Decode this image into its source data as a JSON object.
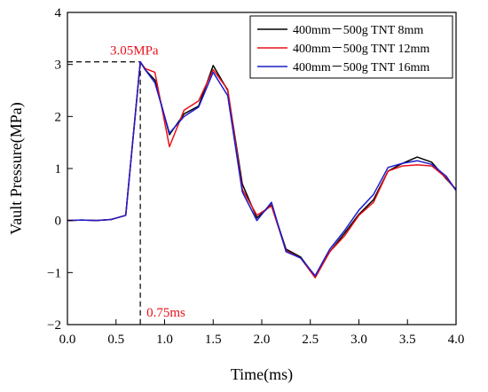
{
  "chart_data": {
    "type": "line",
    "title": "",
    "xlabel": "Time(ms)",
    "ylabel": "Vault Pressure(MPa)",
    "xlim": [
      0,
      4.0
    ],
    "ylim": [
      -2,
      4
    ],
    "xticks": [
      0.0,
      0.5,
      1.0,
      1.5,
      2.0,
      2.5,
      3.0,
      3.5,
      4.0
    ],
    "xtick_labels": [
      "0.0",
      "0.5",
      "1.0",
      "1.5",
      "2.0",
      "2.5",
      "3.0",
      "3.5",
      "4.0"
    ],
    "yticks": [
      -2,
      -1,
      0,
      1,
      2,
      3,
      4
    ],
    "ytick_labels": [
      "−2",
      "−1",
      "0",
      "1",
      "2",
      "3",
      "4"
    ],
    "grid": false,
    "legend_position": "top-right",
    "series": [
      {
        "name": "400mm－500g TNT 8mm",
        "color": "#000000",
        "x": [
          0.0,
          0.15,
          0.3,
          0.45,
          0.6,
          0.75,
          0.8,
          0.9,
          1.05,
          1.2,
          1.35,
          1.5,
          1.65,
          1.8,
          1.95,
          2.1,
          2.25,
          2.4,
          2.55,
          2.7,
          2.85,
          3.0,
          3.15,
          3.3,
          3.45,
          3.6,
          3.75,
          3.9,
          4.0
        ],
        "y": [
          0.0,
          0.01,
          0.0,
          0.02,
          0.1,
          3.05,
          2.9,
          2.7,
          1.65,
          2.05,
          2.2,
          2.98,
          2.5,
          0.7,
          0.05,
          0.3,
          -0.55,
          -0.7,
          -1.08,
          -0.6,
          -0.25,
          0.12,
          0.4,
          0.95,
          1.1,
          1.22,
          1.12,
          0.8,
          0.6
        ]
      },
      {
        "name": "400mm－500g TNT 12mm",
        "color": "#e8101a",
        "x": [
          0.0,
          0.15,
          0.3,
          0.45,
          0.6,
          0.75,
          0.8,
          0.9,
          1.05,
          1.2,
          1.35,
          1.5,
          1.65,
          1.8,
          1.95,
          2.1,
          2.25,
          2.4,
          2.55,
          2.7,
          2.85,
          3.0,
          3.15,
          3.3,
          3.45,
          3.6,
          3.75,
          3.9,
          4.0
        ],
        "y": [
          0.0,
          0.01,
          0.0,
          0.02,
          0.1,
          3.05,
          2.92,
          2.85,
          1.42,
          2.12,
          2.3,
          2.9,
          2.52,
          0.6,
          0.1,
          0.28,
          -0.58,
          -0.72,
          -1.1,
          -0.6,
          -0.3,
          0.1,
          0.35,
          0.95,
          1.05,
          1.07,
          1.05,
          0.82,
          0.58
        ]
      },
      {
        "name": "400mm－500g TNT 16mm",
        "color": "#1c1ccc",
        "x": [
          0.0,
          0.15,
          0.3,
          0.45,
          0.6,
          0.75,
          0.8,
          0.9,
          1.05,
          1.2,
          1.35,
          1.5,
          1.65,
          1.8,
          1.95,
          2.1,
          2.25,
          2.4,
          2.55,
          2.7,
          2.85,
          3.0,
          3.15,
          3.3,
          3.45,
          3.6,
          3.75,
          3.9,
          4.0
        ],
        "y": [
          0.0,
          0.01,
          0.0,
          0.02,
          0.1,
          3.05,
          2.9,
          2.65,
          1.68,
          2.0,
          2.18,
          2.85,
          2.4,
          0.55,
          0.0,
          0.35,
          -0.6,
          -0.72,
          -1.06,
          -0.55,
          -0.2,
          0.2,
          0.5,
          1.02,
          1.1,
          1.15,
          1.08,
          0.85,
          0.58
        ]
      }
    ],
    "annotations": [
      {
        "text": "3.05MPa",
        "x": 0.75,
        "y": 3.05,
        "color": "#e8101a"
      },
      {
        "text": "0.75ms",
        "x": 0.75,
        "y": -2,
        "color": "#e8101a"
      }
    ]
  }
}
